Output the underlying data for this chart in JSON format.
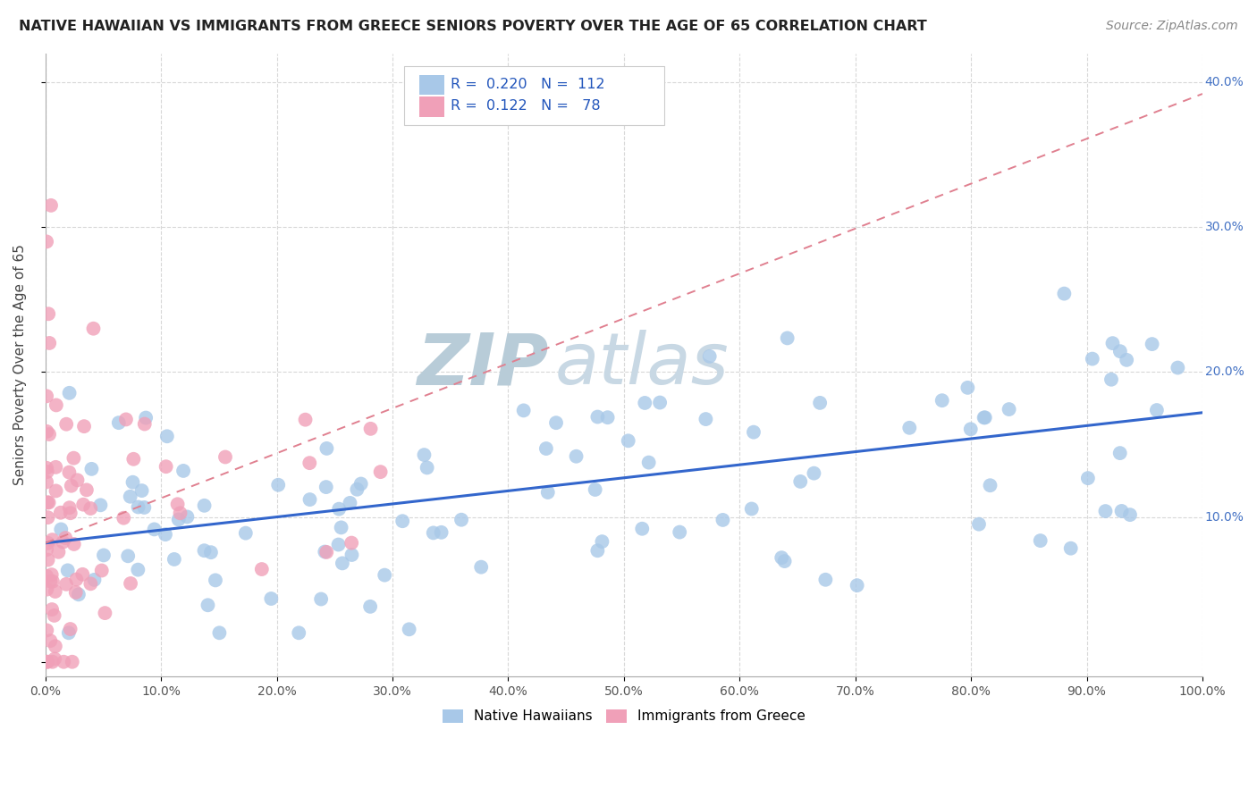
{
  "title": "NATIVE HAWAIIAN VS IMMIGRANTS FROM GREECE SENIORS POVERTY OVER THE AGE OF 65 CORRELATION CHART",
  "source": "Source: ZipAtlas.com",
  "ylabel": "Seniors Poverty Over the Age of 65",
  "xlim": [
    0,
    1.0
  ],
  "ylim": [
    -0.01,
    0.42
  ],
  "color_blue": "#a8c8e8",
  "color_pink": "#f0a0b8",
  "line_blue": "#3366cc",
  "line_pink": "#e08090",
  "watermark_zip": "#b0c8d8",
  "watermark_atlas": "#c8d8e0",
  "legend_r1": "R = 0.220",
  "legend_n1": "N = 112",
  "legend_r2": "R = 0.122",
  "legend_n2": "N = 78",
  "blue_line_x0": 0.0,
  "blue_line_y0": 0.082,
  "blue_line_x1": 1.0,
  "blue_line_y1": 0.172,
  "pink_line_x0": 0.0,
  "pink_line_y0": 0.082,
  "pink_line_x1": 0.3,
  "pink_line_y1": 0.175
}
